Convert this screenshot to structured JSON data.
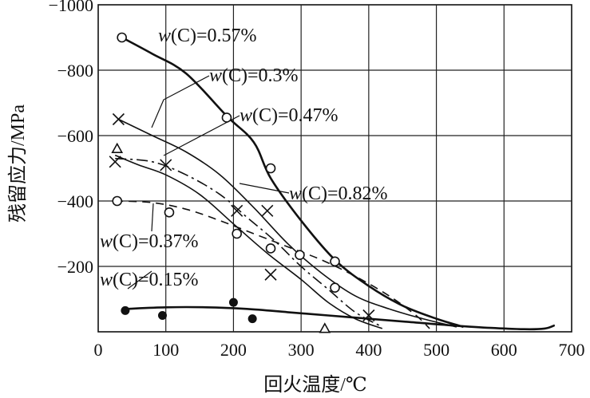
{
  "chart_data": {
    "type": "line",
    "xlabel": "回火温度/℃",
    "ylabel": "残留应力/MPa",
    "xlim": [
      0,
      700
    ],
    "ylim": [
      0,
      -1000
    ],
    "xticks": [
      0,
      100,
      200,
      300,
      400,
      500,
      600,
      700
    ],
    "xtick_labels": [
      "0",
      "100",
      "200",
      "300",
      "400",
      "500",
      "600",
      "700"
    ],
    "yticks": [
      -1000,
      -800,
      -600,
      -400,
      -200
    ],
    "ytick_labels": [
      "−1000",
      "−800",
      "−600",
      "−400",
      "−200"
    ],
    "grid": true,
    "series": [
      {
        "name": "w(C)=0.57%",
        "label_text": "w(C)=0.57%",
        "marker": "open-circle",
        "line_style": "solid-thick",
        "curve": [
          [
            35,
            -900
          ],
          [
            80,
            -850
          ],
          [
            130,
            -790
          ],
          [
            190,
            -660
          ],
          [
            230,
            -580
          ],
          [
            255,
            -470
          ],
          [
            300,
            -340
          ],
          [
            350,
            -220
          ],
          [
            400,
            -140
          ],
          [
            450,
            -80
          ],
          [
            500,
            -40
          ],
          [
            540,
            -15
          ]
        ],
        "points": [
          [
            35,
            -900
          ],
          [
            190,
            -655
          ],
          [
            255,
            -500
          ],
          [
            350,
            -215
          ]
        ]
      },
      {
        "name": "w(C)=0.3%",
        "label_text": "w(C)=0.3%",
        "marker": "cross",
        "line_style": "solid",
        "curve": [
          [
            30,
            -650
          ],
          [
            80,
            -600
          ],
          [
            130,
            -550
          ],
          [
            180,
            -480
          ],
          [
            230,
            -380
          ],
          [
            280,
            -270
          ],
          [
            330,
            -180
          ],
          [
            380,
            -110
          ],
          [
            430,
            -70
          ],
          [
            480,
            -40
          ],
          [
            530,
            -15
          ]
        ],
        "points": [
          [
            30,
            -650
          ],
          [
            100,
            -510
          ],
          [
            205,
            -370
          ],
          [
            250,
            -370
          ],
          [
            255,
            -175
          ],
          [
            400,
            -50
          ]
        ]
      },
      {
        "name": "w(C)=0.47%",
        "label_text": "w(C)=0.47%",
        "marker": "open-triangle",
        "line_style": "solid",
        "curve": [
          [
            25,
            -540
          ],
          [
            60,
            -510
          ],
          [
            100,
            -480
          ],
          [
            150,
            -420
          ],
          [
            200,
            -330
          ],
          [
            250,
            -240
          ],
          [
            300,
            -160
          ],
          [
            340,
            -90
          ],
          [
            380,
            -40
          ],
          [
            420,
            -10
          ]
        ],
        "points": [
          [
            28,
            -560
          ],
          [
            335,
            -10
          ]
        ]
      },
      {
        "name": "w(C)=0.82%",
        "label_text": "w(C)=0.82%",
        "marker": "cross",
        "line_style": "dash-dot",
        "curve": [
          [
            25,
            -530
          ],
          [
            80,
            -520
          ],
          [
            130,
            -480
          ],
          [
            180,
            -420
          ],
          [
            220,
            -350
          ],
          [
            260,
            -280
          ],
          [
            300,
            -200
          ],
          [
            340,
            -130
          ],
          [
            380,
            -60
          ],
          [
            420,
            -15
          ]
        ],
        "points": [
          [
            25,
            -520
          ]
        ]
      },
      {
        "name": "w(C)=0.37%",
        "label_text": "w(C)=0.37%",
        "marker": "open-circle",
        "line_style": "dashed",
        "curve": [
          [
            25,
            -400
          ],
          [
            80,
            -395
          ],
          [
            130,
            -375
          ],
          [
            180,
            -340
          ],
          [
            230,
            -300
          ],
          [
            280,
            -260
          ],
          [
            330,
            -220
          ],
          [
            380,
            -170
          ],
          [
            430,
            -110
          ],
          [
            470,
            -50
          ],
          [
            490,
            -10
          ]
        ],
        "points": [
          [
            28,
            -400
          ],
          [
            105,
            -365
          ],
          [
            205,
            -300
          ],
          [
            255,
            -255
          ],
          [
            298,
            -235
          ],
          [
            350,
            -135
          ]
        ]
      },
      {
        "name": "w(C)=0.15%",
        "label_text": "w(C)=0.15%",
        "marker": "filled-circle",
        "line_style": "solid-thick",
        "curve": [
          [
            40,
            -70
          ],
          [
            100,
            -75
          ],
          [
            160,
            -75
          ],
          [
            220,
            -70
          ],
          [
            280,
            -60
          ],
          [
            340,
            -50
          ],
          [
            400,
            -40
          ],
          [
            460,
            -30
          ],
          [
            520,
            -20
          ],
          [
            580,
            -12
          ],
          [
            630,
            -8
          ],
          [
            660,
            -10
          ],
          [
            675,
            -20
          ]
        ],
        "points": [
          [
            40,
            -65
          ],
          [
            95,
            -50
          ],
          [
            200,
            -90
          ],
          [
            228,
            -40
          ]
        ]
      }
    ]
  },
  "style": {
    "line_color": "#111111",
    "background": "#ffffff"
  }
}
